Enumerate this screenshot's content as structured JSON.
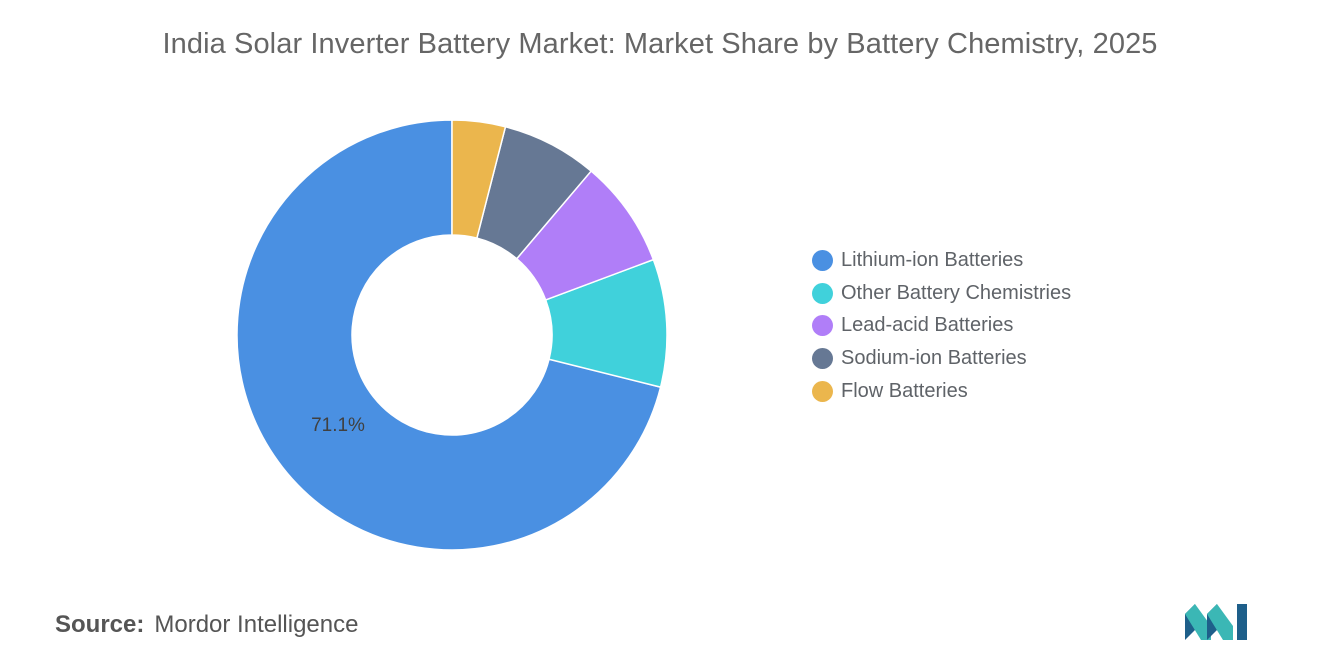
{
  "source": {
    "label": "Source:",
    "name": "Mordor Intelligence"
  },
  "logo": {
    "icon": "mordor-intelligence-logo-icon",
    "colors": [
      "#1e5f8a",
      "#3bb7b5"
    ]
  },
  "chart_data": {
    "type": "pie",
    "style": "donut",
    "title": "India Solar Inverter Battery Market: Market Share by Battery Chemistry, 2025",
    "legend_position": "right",
    "slices": [
      {
        "name": "Lithium-ion Batteries",
        "value": 71.1,
        "color": "#4a90e2",
        "label": "71.1%"
      },
      {
        "name": "Other Battery Chemistries",
        "value": 9.6,
        "color": "#40d1db",
        "label": ""
      },
      {
        "name": "Lead-acid Batteries",
        "value": 8.1,
        "color": "#b07ef8",
        "label": ""
      },
      {
        "name": "Sodium-ion Batteries",
        "value": 7.2,
        "color": "#667894",
        "label": ""
      },
      {
        "name": "Flow Batteries",
        "value": 4.0,
        "color": "#ebb64d",
        "label": ""
      }
    ]
  }
}
